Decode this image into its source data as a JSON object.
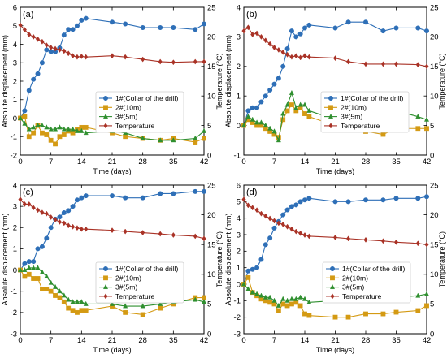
{
  "chart_data": [
    {
      "type": "line",
      "panel_label": "(a)",
      "xlabel": "Time (days)",
      "ylabel": "Absolute displacement (mm)",
      "y2label": "Temperature (°C)",
      "xlim": [
        0,
        42
      ],
      "ylim": [
        -2,
        6
      ],
      "y2lim": [
        0,
        25
      ],
      "xticks": [
        0,
        7,
        14,
        21,
        28,
        35,
        42
      ],
      "yticks": [
        -2,
        -1,
        0,
        1,
        2,
        3,
        4,
        5,
        6
      ],
      "y2ticks": [
        0,
        5,
        10,
        15,
        20,
        25
      ],
      "legend": [
        "1#(Collar of the drill)",
        "2#(10m)",
        "3#(5m)",
        "Temperature"
      ],
      "series": [
        {
          "name": "1#(Collar of the drill)",
          "axis": "left",
          "color": "#2e6fb7",
          "marker": "circle",
          "x": [
            0,
            1,
            2,
            3,
            4,
            5,
            6,
            7,
            8,
            9,
            10,
            11,
            12,
            13,
            14,
            15,
            21,
            24,
            28,
            32,
            35,
            40,
            42
          ],
          "y": [
            0.0,
            0.4,
            1.5,
            2.1,
            2.4,
            3.0,
            3.7,
            3.6,
            3.6,
            3.8,
            4.5,
            4.8,
            4.8,
            5.0,
            5.3,
            5.4,
            5.2,
            5.1,
            4.9,
            4.9,
            4.9,
            4.8,
            5.1
          ]
        },
        {
          "name": "2#(10m)",
          "axis": "left",
          "color": "#d49a13",
          "marker": "square",
          "x": [
            0,
            1,
            2,
            3,
            4,
            5,
            6,
            7,
            8,
            9,
            10,
            11,
            12,
            13,
            14,
            15,
            21,
            24,
            28,
            32,
            35,
            40,
            42
          ],
          "y": [
            0.0,
            0.1,
            -1.0,
            -0.8,
            -0.4,
            -0.8,
            -0.9,
            -1.2,
            -1.4,
            -1.0,
            -0.9,
            -0.7,
            -0.8,
            -0.6,
            -0.5,
            -0.5,
            -0.8,
            -1.0,
            -1.1,
            -1.2,
            -1.1,
            -1.3,
            -1.1
          ]
        },
        {
          "name": "3#(5m)",
          "axis": "left",
          "color": "#2f8f2f",
          "marker": "triangle",
          "x": [
            0,
            1,
            2,
            3,
            4,
            5,
            6,
            7,
            8,
            9,
            10,
            11,
            12,
            13,
            14,
            15,
            21,
            24,
            28,
            32,
            35,
            40,
            42
          ],
          "y": [
            0.0,
            -0.3,
            -0.6,
            -0.5,
            -0.4,
            -0.4,
            -0.5,
            -0.6,
            -0.6,
            -0.5,
            -0.6,
            -0.6,
            -0.6,
            -0.7,
            -0.7,
            -0.8,
            -0.7,
            -0.8,
            -1.1,
            -1.2,
            -1.2,
            -1.1,
            -0.7
          ]
        },
        {
          "name": "Temperature",
          "axis": "right",
          "color": "#a93226",
          "marker": "diamond",
          "x": [
            0,
            1,
            2,
            3,
            4,
            5,
            6,
            7,
            8,
            9,
            10,
            11,
            12,
            13,
            14,
            15,
            21,
            24,
            28,
            32,
            35,
            40,
            42
          ],
          "y": [
            22.0,
            21.2,
            20.4,
            20.0,
            19.6,
            19.2,
            18.6,
            18.2,
            18.0,
            17.8,
            17.6,
            17.2,
            16.8,
            16.6,
            16.7,
            16.6,
            16.8,
            16.6,
            16.2,
            15.8,
            15.7,
            15.8,
            15.8
          ]
        }
      ]
    },
    {
      "type": "line",
      "panel_label": "(b)",
      "xlabel": "Time (days)",
      "ylabel": "Absolute displacement (mm)",
      "y2label": "Temperature (°C)",
      "xlim": [
        0,
        42
      ],
      "ylim": [
        -1,
        4
      ],
      "y2lim": [
        0,
        25
      ],
      "xticks": [
        0,
        7,
        14,
        21,
        28,
        35,
        42
      ],
      "yticks": [
        -1,
        0,
        1,
        2,
        3,
        4
      ],
      "y2ticks": [
        0,
        5,
        10,
        15,
        20,
        25
      ],
      "legend": [
        "1#(Collar of the drill)",
        "2#(10m)",
        "3#(5m)",
        "Temperature"
      ],
      "series": [
        {
          "name": "1#(Collar of the drill)",
          "axis": "left",
          "color": "#2e6fb7",
          "marker": "circle",
          "x": [
            0,
            1,
            2,
            3,
            4,
            5,
            6,
            7,
            8,
            9,
            10,
            11,
            12,
            13,
            14,
            15,
            21,
            24,
            28,
            32,
            35,
            40,
            42
          ],
          "y": [
            0.0,
            0.5,
            0.6,
            0.6,
            0.8,
            1.0,
            1.2,
            1.4,
            1.6,
            2.0,
            2.6,
            3.2,
            3.0,
            3.1,
            3.3,
            3.4,
            3.3,
            3.5,
            3.5,
            3.2,
            3.3,
            3.3,
            3.2
          ]
        },
        {
          "name": "2#(10m)",
          "axis": "left",
          "color": "#d49a13",
          "marker": "square",
          "x": [
            0,
            1,
            2,
            3,
            4,
            5,
            6,
            7,
            8,
            9,
            10,
            11,
            12,
            13,
            14,
            15,
            21,
            24,
            28,
            32,
            35,
            40,
            42
          ],
          "y": [
            0.0,
            0.2,
            0.1,
            0.0,
            0.0,
            -0.1,
            -0.2,
            -0.3,
            -0.4,
            0.2,
            0.5,
            0.7,
            0.5,
            0.6,
            0.4,
            0.3,
            0.0,
            -0.1,
            -0.2,
            -0.3,
            -0.1,
            -0.1,
            -0.1
          ]
        },
        {
          "name": "3#(5m)",
          "axis": "left",
          "color": "#2f8f2f",
          "marker": "triangle",
          "x": [
            0,
            1,
            2,
            3,
            4,
            5,
            6,
            7,
            8,
            9,
            10,
            11,
            12,
            13,
            14,
            15,
            21,
            24,
            28,
            32,
            35,
            40,
            42
          ],
          "y": [
            0.0,
            0.3,
            0.2,
            0.1,
            0.1,
            0.0,
            -0.1,
            -0.2,
            -0.5,
            0.4,
            0.7,
            1.1,
            0.6,
            0.7,
            0.7,
            0.5,
            0.2,
            0.2,
            0.5,
            0.4,
            0.5,
            0.3,
            0.2
          ]
        },
        {
          "name": "Temperature",
          "axis": "right",
          "color": "#a93226",
          "marker": "diamond",
          "x": [
            0,
            1,
            2,
            3,
            4,
            5,
            6,
            7,
            8,
            9,
            10,
            11,
            12,
            13,
            14,
            15,
            21,
            24,
            28,
            32,
            35,
            40,
            42
          ],
          "y": [
            21.0,
            21.6,
            20.4,
            20.6,
            20.0,
            19.4,
            18.8,
            18.2,
            17.8,
            17.4,
            17.0,
            16.6,
            16.8,
            16.5,
            16.8,
            16.6,
            16.4,
            15.8,
            15.4,
            15.4,
            15.4,
            15.3,
            15.0
          ]
        }
      ]
    },
    {
      "type": "line",
      "panel_label": "(c)",
      "xlabel": "Time (days)",
      "ylabel": "Absolute displacement (mm)",
      "y2label": "Temperature (°C)",
      "xlim": [
        0,
        42
      ],
      "ylim": [
        -3,
        4
      ],
      "y2lim": [
        0,
        25
      ],
      "xticks": [
        0,
        7,
        14,
        21,
        28,
        35,
        42
      ],
      "yticks": [
        -3,
        -2,
        -1,
        0,
        1,
        2,
        3,
        4
      ],
      "y2ticks": [
        0,
        5,
        10,
        15,
        20,
        25
      ],
      "legend": [
        "1#(Collar of the drill)",
        "2#(10m)",
        "3#(5m)",
        "Temperature"
      ],
      "series": [
        {
          "name": "1#(Collar of the drill)",
          "axis": "left",
          "color": "#2e6fb7",
          "marker": "circle",
          "x": [
            0,
            1,
            2,
            3,
            4,
            5,
            6,
            7,
            8,
            9,
            10,
            11,
            12,
            13,
            14,
            15,
            21,
            24,
            28,
            32,
            35,
            40,
            42
          ],
          "y": [
            0.0,
            0.3,
            0.4,
            0.4,
            1.0,
            1.1,
            1.5,
            2.0,
            2.4,
            2.5,
            2.7,
            2.8,
            3.0,
            3.3,
            3.4,
            3.5,
            3.5,
            3.4,
            3.4,
            3.6,
            3.6,
            3.7,
            3.7
          ]
        },
        {
          "name": "2#(10m)",
          "axis": "left",
          "color": "#d49a13",
          "marker": "square",
          "x": [
            0,
            1,
            2,
            3,
            4,
            5,
            6,
            7,
            8,
            9,
            10,
            11,
            12,
            13,
            14,
            15,
            21,
            24,
            28,
            32,
            35,
            40,
            42
          ],
          "y": [
            0.0,
            -0.3,
            -0.2,
            -0.4,
            -0.4,
            -0.9,
            -0.9,
            -1.0,
            -1.2,
            -1.3,
            -1.5,
            -1.8,
            -1.9,
            -2.0,
            -1.9,
            -1.9,
            -1.7,
            -2.0,
            -2.1,
            -1.8,
            -1.6,
            -1.3,
            -1.3
          ]
        },
        {
          "name": "3#(5m)",
          "axis": "left",
          "color": "#2f8f2f",
          "marker": "triangle",
          "x": [
            0,
            1,
            2,
            3,
            4,
            5,
            6,
            7,
            8,
            9,
            10,
            11,
            12,
            13,
            14,
            15,
            21,
            24,
            28,
            32,
            35,
            40,
            42
          ],
          "y": [
            0.0,
            0.0,
            0.1,
            0.1,
            0.1,
            -0.1,
            -0.3,
            -0.6,
            -0.8,
            -1.0,
            -1.2,
            -1.4,
            -1.5,
            -1.5,
            -1.5,
            -1.6,
            -1.6,
            -1.7,
            -1.7,
            -1.6,
            -1.5,
            -1.4,
            -1.5
          ]
        },
        {
          "name": "Temperature",
          "axis": "right",
          "color": "#a93226",
          "marker": "diamond",
          "x": [
            0,
            1,
            2,
            3,
            4,
            5,
            6,
            7,
            8,
            9,
            10,
            11,
            12,
            13,
            14,
            15,
            21,
            24,
            28,
            32,
            35,
            40,
            42
          ],
          "y": [
            22.6,
            21.8,
            21.8,
            21.2,
            20.8,
            20.4,
            20.2,
            19.6,
            19.2,
            18.8,
            18.6,
            18.2,
            18.0,
            17.8,
            17.6,
            17.6,
            17.4,
            17.2,
            17.0,
            16.8,
            16.6,
            16.4,
            16.0
          ]
        }
      ]
    },
    {
      "type": "line",
      "panel_label": "(d)",
      "xlabel": "Time (days)",
      "ylabel": "Absolute displacement (mm)",
      "y2label": "Temperature (°C)",
      "xlim": [
        0,
        42
      ],
      "ylim": [
        -3,
        6
      ],
      "y2lim": [
        0,
        25
      ],
      "xticks": [
        0,
        7,
        14,
        21,
        28,
        35,
        42
      ],
      "yticks": [
        -3,
        -2,
        -1,
        0,
        1,
        2,
        3,
        4,
        5,
        6
      ],
      "y2ticks": [
        0,
        5,
        10,
        15,
        20,
        25
      ],
      "legend": [
        "1#(Collar of the drill)",
        "2#(10m)",
        "3#(5m)",
        "Temperature"
      ],
      "series": [
        {
          "name": "1#(Collar of the drill)",
          "axis": "left",
          "color": "#2e6fb7",
          "marker": "circle",
          "x": [
            0,
            1,
            2,
            3,
            4,
            5,
            6,
            7,
            8,
            9,
            10,
            11,
            12,
            13,
            14,
            15,
            21,
            24,
            28,
            32,
            35,
            40,
            42
          ],
          "y": [
            0.0,
            0.8,
            0.9,
            1.0,
            1.5,
            2.4,
            2.8,
            3.4,
            3.8,
            4.2,
            4.5,
            4.7,
            4.8,
            5.0,
            5.1,
            5.2,
            5.0,
            5.0,
            5.1,
            5.1,
            5.2,
            5.2,
            5.3
          ]
        },
        {
          "name": "2#(10m)",
          "axis": "left",
          "color": "#d49a13",
          "marker": "square",
          "x": [
            0,
            1,
            2,
            3,
            4,
            5,
            6,
            7,
            8,
            9,
            10,
            11,
            12,
            13,
            14,
            15,
            21,
            24,
            28,
            32,
            35,
            40,
            42
          ],
          "y": [
            0.0,
            0.4,
            -0.5,
            -0.7,
            -0.9,
            -1.0,
            -1.1,
            -1.2,
            -1.6,
            -1.2,
            -1.3,
            -1.2,
            -1.1,
            -1.3,
            -1.8,
            -1.9,
            -2.0,
            -2.0,
            -1.8,
            -1.8,
            -1.7,
            -1.6,
            -1.3
          ]
        },
        {
          "name": "3#(5m)",
          "axis": "left",
          "color": "#2f8f2f",
          "marker": "triangle",
          "x": [
            0,
            1,
            2,
            3,
            4,
            5,
            6,
            7,
            8,
            9,
            10,
            11,
            12,
            13,
            14,
            15,
            21,
            24,
            28,
            32,
            35,
            40,
            42
          ],
          "y": [
            0.0,
            -0.3,
            -0.5,
            -0.6,
            -0.7,
            -0.8,
            -0.8,
            -1.0,
            -1.3,
            -0.9,
            -1.0,
            -0.9,
            -0.9,
            -0.8,
            -0.9,
            -1.1,
            -1.0,
            -1.0,
            -0.9,
            -0.8,
            -0.8,
            -0.7,
            -0.6
          ]
        },
        {
          "name": "Temperature",
          "axis": "right",
          "color": "#a93226",
          "marker": "diamond",
          "x": [
            0,
            1,
            2,
            3,
            4,
            5,
            6,
            7,
            8,
            9,
            10,
            11,
            12,
            13,
            14,
            15,
            21,
            24,
            28,
            32,
            35,
            40,
            42
          ],
          "y": [
            22.6,
            21.6,
            21.2,
            20.8,
            20.2,
            19.8,
            19.4,
            19.0,
            18.6,
            18.4,
            18.0,
            17.6,
            17.2,
            16.9,
            16.6,
            16.4,
            16.2,
            16.0,
            15.8,
            15.6,
            15.4,
            15.2,
            15.0
          ]
        }
      ]
    }
  ]
}
